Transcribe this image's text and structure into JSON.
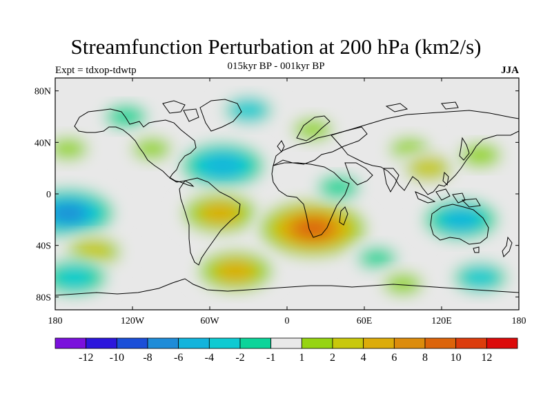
{
  "header": {
    "title": "Streamfunction Perturbation at 200 hPa (km2/s)",
    "subtitle": "015kyr BP - 001kyr BP",
    "left_label": "Expt = tdxop-tdwtp",
    "right_label": "JJA"
  },
  "chart_data": {
    "type": "heatmap",
    "title": "Streamfunction Perturbation at 200 hPa (km2/s)",
    "subtitle": "015kyr BP - 001kyr BP",
    "projection": "cylindrical equidistant",
    "x_range": [
      -180,
      180
    ],
    "y_range": [
      -90,
      90
    ],
    "x_ticks": [
      {
        "value": -180,
        "label": "180"
      },
      {
        "value": -120,
        "label": "120W"
      },
      {
        "value": -60,
        "label": "60W"
      },
      {
        "value": 0,
        "label": "0"
      },
      {
        "value": 60,
        "label": "60E"
      },
      {
        "value": 120,
        "label": "120E"
      },
      {
        "value": 180,
        "label": "180"
      }
    ],
    "y_ticks": [
      {
        "value": 80,
        "label": "80N"
      },
      {
        "value": 40,
        "label": "40N"
      },
      {
        "value": 0,
        "label": "0"
      },
      {
        "value": -40,
        "label": "40S"
      },
      {
        "value": -80,
        "label": "80S"
      }
    ],
    "colorbar": {
      "bins": [
        {
          "color": "#7a10dc"
        },
        {
          "color": "#2c16dc"
        },
        {
          "color": "#1a4ed8"
        },
        {
          "color": "#1e8cd8"
        },
        {
          "color": "#12b4dc"
        },
        {
          "color": "#0ecad2"
        },
        {
          "color": "#0cd49a"
        },
        {
          "color": "#e8e8e8"
        },
        {
          "color": "#96d412"
        },
        {
          "color": "#c8c80c"
        },
        {
          "color": "#dcac0a"
        },
        {
          "color": "#dc8c0c"
        },
        {
          "color": "#dc640a"
        },
        {
          "color": "#dc3c0c"
        },
        {
          "color": "#dc0a0a"
        }
      ],
      "labels": [
        "-12",
        "-10",
        "-8",
        "-6",
        "-4",
        "-2",
        "-1",
        "1",
        "2",
        "4",
        "6",
        "8",
        "10",
        "12"
      ]
    },
    "anomalies": [
      {
        "lon": -170,
        "lat": -15,
        "value": -7
      },
      {
        "lon": -150,
        "lat": -45,
        "value": 3
      },
      {
        "lon": -165,
        "lat": -65,
        "value": -4
      },
      {
        "lon": -170,
        "lat": 35,
        "value": 2
      },
      {
        "lon": -125,
        "lat": 60,
        "value": -1.5
      },
      {
        "lon": -105,
        "lat": 35,
        "value": 2
      },
      {
        "lon": -50,
        "lat": 22,
        "value": -6
      },
      {
        "lon": -52,
        "lat": -15,
        "value": 5
      },
      {
        "lon": -30,
        "lat": 65,
        "value": -2.5
      },
      {
        "lon": 20,
        "lat": 50,
        "value": 2
      },
      {
        "lon": 20,
        "lat": -27,
        "value": 9
      },
      {
        "lon": -40,
        "lat": -60,
        "value": 5
      },
      {
        "lon": 70,
        "lat": -50,
        "value": -2
      },
      {
        "lon": 40,
        "lat": 5,
        "value": -1.5
      },
      {
        "lon": 95,
        "lat": 35,
        "value": 2
      },
      {
        "lon": 110,
        "lat": 20,
        "value": 2.5
      },
      {
        "lon": 150,
        "lat": 30,
        "value": 1.5
      },
      {
        "lon": 135,
        "lat": -20,
        "value": -5
      },
      {
        "lon": 150,
        "lat": -65,
        "value": -3
      },
      {
        "lon": 90,
        "lat": -70,
        "value": 2
      }
    ]
  }
}
